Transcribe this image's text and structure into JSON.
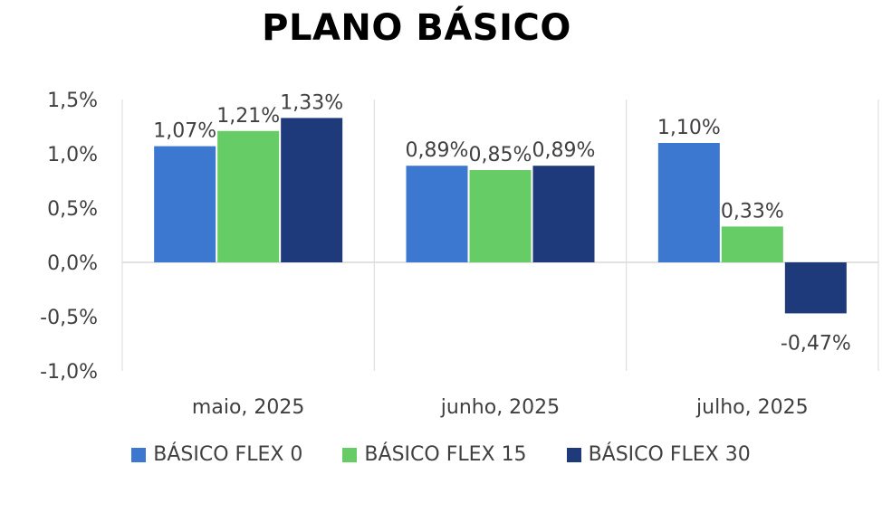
{
  "chart_data": {
    "type": "bar",
    "title": "PLANO BÁSICO",
    "categories": [
      "maio, 2025",
      "junho, 2025",
      "julho, 2025"
    ],
    "series": [
      {
        "name": "BÁSICO FLEX 0",
        "values": [
          1.07,
          0.89,
          1.1
        ],
        "labels": [
          "1,07%",
          "0,89%",
          "1,10%"
        ],
        "color": "#3C78D0"
      },
      {
        "name": "BÁSICO FLEX 15",
        "values": [
          1.21,
          0.85,
          0.33
        ],
        "labels": [
          "1,21%",
          "0,85%",
          "0,33%"
        ],
        "color": "#66CC66"
      },
      {
        "name": "BÁSICO FLEX 30",
        "values": [
          1.33,
          0.89,
          -0.47
        ],
        "labels": [
          "1,33%",
          "0,89%",
          "-0,47%"
        ],
        "color": "#1F3A7A"
      }
    ],
    "ylim": [
      -1.0,
      1.5
    ],
    "yticks": [
      1.5,
      1.0,
      0.5,
      0.0,
      -0.5,
      -1.0
    ],
    "ytick_labels": [
      "1,5%",
      "1,0%",
      "0,5%",
      "0,0%",
      "-0,5%",
      "-1,0%"
    ],
    "xlabel": "",
    "ylabel": "",
    "legend_position": "bottom",
    "grid": "vertical category separators"
  }
}
